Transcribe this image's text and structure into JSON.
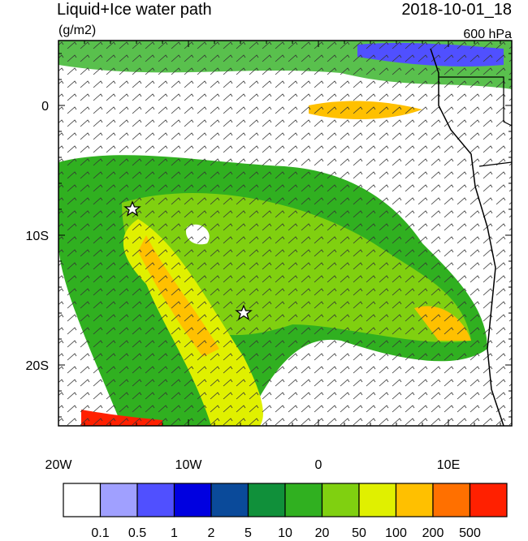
{
  "header": {
    "title": "Liquid+Ice water path",
    "units": "(g/m2)",
    "time": "2018-10-01_18",
    "level": "600 hPa"
  },
  "map": {
    "x_ticks": [
      "20W",
      "10W",
      "0",
      "10E"
    ],
    "y_ticks": [
      "0",
      "10S",
      "20S"
    ]
  },
  "colorbar": {
    "colors": [
      "#ffffff",
      "#a0a0ff",
      "#5050ff",
      "#0000e0",
      "#0a4a9a",
      "#10903a",
      "#30b020",
      "#80d010",
      "#e0f000",
      "#ffc000",
      "#ff7000",
      "#ff2000"
    ],
    "labels": [
      "0.1",
      "0.5",
      "1",
      "2",
      "5",
      "10",
      "20",
      "50",
      "100",
      "200",
      "500"
    ]
  }
}
